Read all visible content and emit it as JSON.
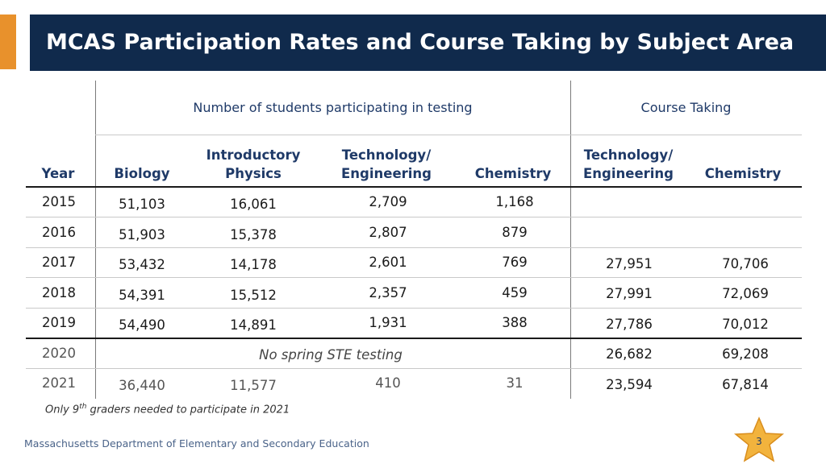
{
  "title": "MCAS Participation Rates and Course Taking by Subject Area",
  "group_headers": {
    "testing": "Number of students participating in testing",
    "course": "Course Taking"
  },
  "columns": {
    "year": "Year",
    "biology": "Biology",
    "intro_physics_1": "Introductory",
    "intro_physics_2": "Physics",
    "tech_eng_1": "Technology/",
    "tech_eng_2": "Engineering",
    "chemistry": "Chemistry",
    "course_tech_eng_1": "Technology/",
    "course_tech_eng_2": "Engineering",
    "course_chemistry": "Chemistry"
  },
  "rows": [
    {
      "year": "2015",
      "biology": "51,103",
      "physics": "16,061",
      "tech": "2,709",
      "chem": "1,168",
      "c_tech": "",
      "c_chem": ""
    },
    {
      "year": "2016",
      "biology": "51,903",
      "physics": "15,378",
      "tech": "2,807",
      "chem": "879",
      "c_tech": "",
      "c_chem": ""
    },
    {
      "year": "2017",
      "biology": "53,432",
      "physics": "14,178",
      "tech": "2,601",
      "chem": "769",
      "c_tech": "27,951",
      "c_chem": "70,706"
    },
    {
      "year": "2018",
      "biology": "54,391",
      "physics": "15,512",
      "tech": "2,357",
      "chem": "459",
      "c_tech": "27,991",
      "c_chem": "72,069"
    },
    {
      "year": "2019",
      "biology": "54,490",
      "physics": "14,891",
      "tech": "1,931",
      "chem": "388",
      "c_tech": "27,786",
      "c_chem": "70,012"
    },
    {
      "year": "2020",
      "note": "No spring STE testing",
      "c_tech": "26,682",
      "c_chem": "69,208"
    },
    {
      "year": "2021",
      "biology": "36,440",
      "physics": "11,577",
      "tech": "410",
      "chem": "31",
      "c_tech": "23,594",
      "c_chem": "67,814"
    }
  ],
  "footnote": {
    "pre": "Only 9",
    "sup": "th",
    "post": " graders needed to participate in 2021"
  },
  "footer": "Massachusetts Department of Elementary and Secondary Education",
  "page_number": "3",
  "colors": {
    "title_bar": "#102a4c",
    "accent": "#e8912c",
    "header_text": "#1f3a68",
    "star": "#f2b33d"
  }
}
